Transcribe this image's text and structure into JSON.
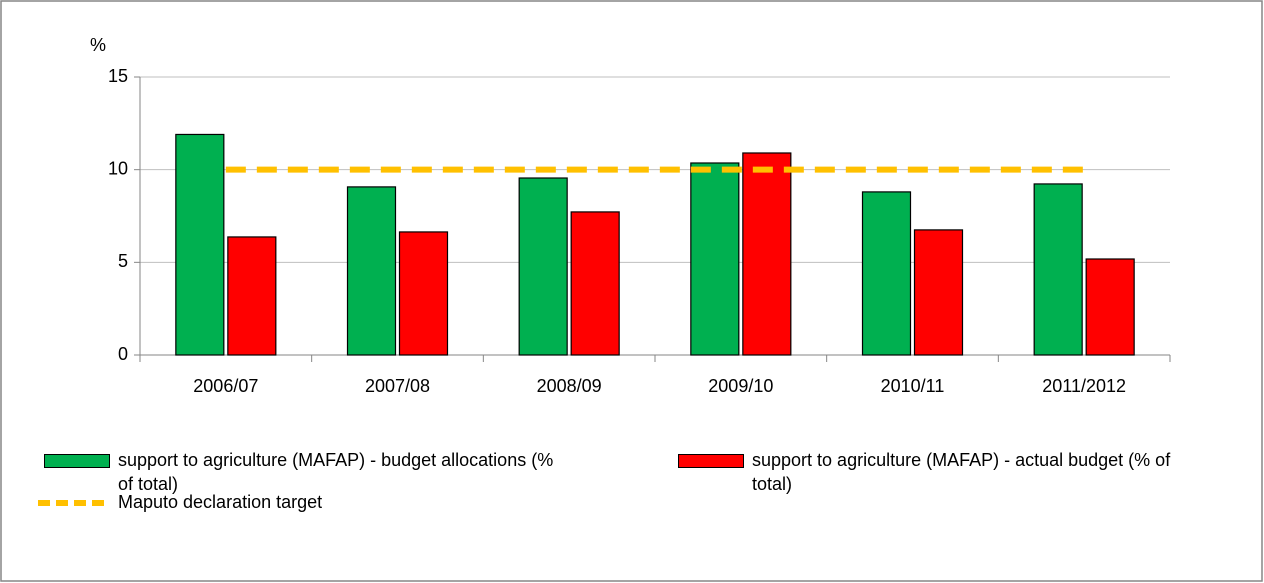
{
  "chart_data": {
    "type": "bar",
    "y_label": "%",
    "categories": [
      "2006/07",
      "2007/08",
      "2008/09",
      "2009/10",
      "2010/11",
      "2011/2012"
    ],
    "series": [
      {
        "name": "support to agriculture (MAFAP) - budget allocations (% of total)",
        "color": "#00b050",
        "type": "bar",
        "values": [
          11.9,
          9.07,
          9.55,
          10.36,
          8.8,
          9.23
        ]
      },
      {
        "name": "support to agriculture (MAFAP) - actual budget (% of total)",
        "color": "#ff0000",
        "type": "bar",
        "values": [
          6.37,
          6.64,
          7.72,
          10.9,
          6.75,
          5.18
        ]
      },
      {
        "name": "Maputo declaration target",
        "color": "#ffc000",
        "type": "line",
        "dashed": true,
        "values": [
          10,
          10,
          10,
          10,
          10,
          10
        ]
      }
    ],
    "ylim": [
      0,
      15
    ],
    "yticks": [
      0,
      5,
      10,
      15
    ],
    "grid": true
  }
}
